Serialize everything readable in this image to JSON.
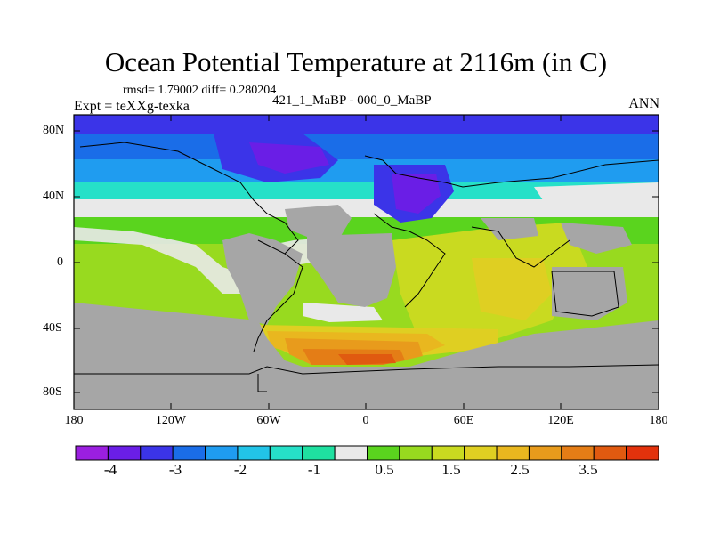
{
  "title": "Ocean Potential Temperature at 2116m (in C)",
  "stats_line": "rmsd= 1.79002 diff= 0.280204",
  "expt_label": "Expt = teXXg-texka",
  "expt_diff": "421_1_MaBP - 000_0_MaBP",
  "season": "ANN",
  "map": {
    "projection": "equirectangular",
    "lat_ticks": [
      "80N",
      "40N",
      "0",
      "40S",
      "80S"
    ],
    "lon_ticks": [
      "180",
      "120W",
      "60W",
      "0",
      "60E",
      "120E",
      "180"
    ],
    "land_color": "#a6a6a6"
  },
  "colorbar": {
    "colors": [
      "#9b1fe0",
      "#6a1ee6",
      "#3b34e8",
      "#1a6de8",
      "#1f9cf0",
      "#22c4e8",
      "#26e0c8",
      "#1fe0a0",
      "#e9e9e9",
      "#5ad41e",
      "#98da1f",
      "#c9da20",
      "#dfcf22",
      "#e9b71f",
      "#e89b1c",
      "#e47d16",
      "#e05a10",
      "#e3320c"
    ],
    "labels": [
      "-4",
      "-3",
      "-2",
      "-1",
      "0.5",
      "1.5",
      "2.5",
      "3.5"
    ]
  }
}
